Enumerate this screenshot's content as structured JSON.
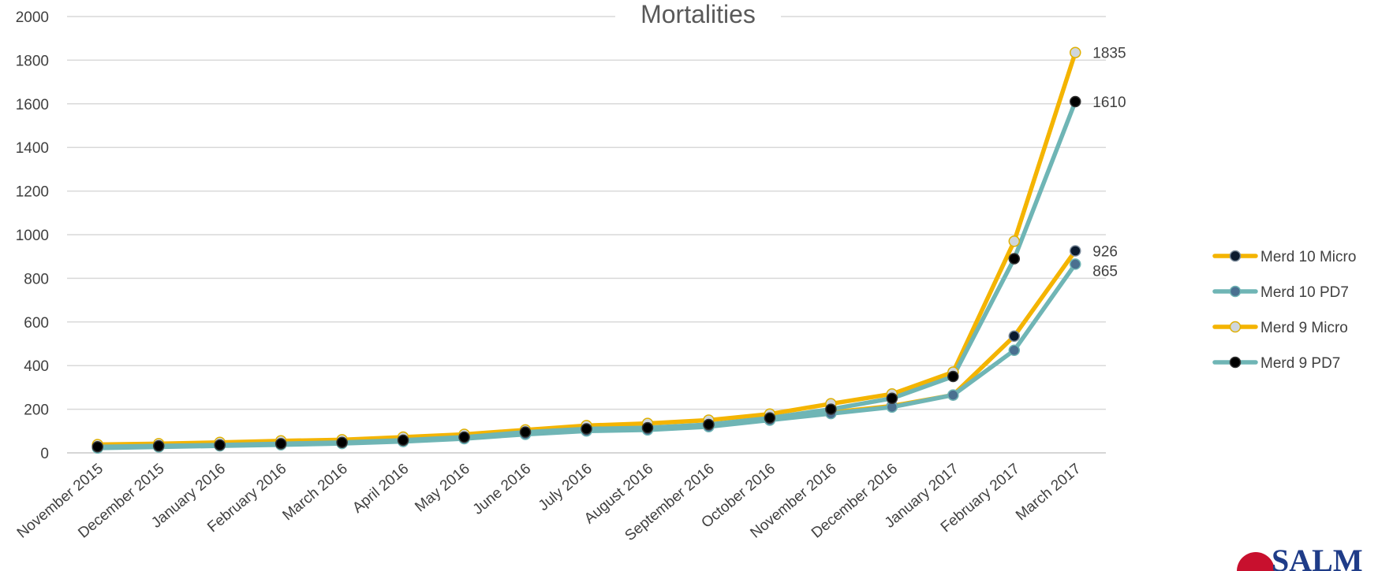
{
  "chart_data": {
    "type": "line",
    "title": "Mortalities",
    "xlabel": "",
    "ylabel": "",
    "ylim": [
      0,
      2000
    ],
    "yticks": [
      0,
      200,
      400,
      600,
      800,
      1000,
      1200,
      1400,
      1600,
      1800,
      2000
    ],
    "grid": true,
    "legend_position": "right",
    "categories": [
      "November 2015",
      "December 2015",
      "January 2016",
      "February 2016",
      "March 2016",
      "April 2016",
      "May 2016",
      "June 2016",
      "July 2016",
      "August 2016",
      "September 2016",
      "October 2016",
      "November 2016",
      "December 2016",
      "January 2017",
      "February 2017",
      "March 2017"
    ],
    "series": [
      {
        "name": "Merd 10 Micro",
        "line_color": "#f4b400",
        "marker_fill": "#0b1a2e",
        "marker_edge": "#7a8a9a",
        "values": [
          25,
          30,
          35,
          40,
          45,
          55,
          70,
          90,
          105,
          110,
          130,
          155,
          185,
          215,
          265,
          535,
          926
        ],
        "end_label": "926"
      },
      {
        "name": "Merd 10 PD7",
        "line_color": "#6fb5b5",
        "marker_fill": "#4a7090",
        "marker_edge": "#6fb5b5",
        "values": [
          22,
          27,
          32,
          37,
          43,
          52,
          65,
          85,
          100,
          105,
          120,
          150,
          180,
          210,
          265,
          470,
          865
        ],
        "end_label": "865"
      },
      {
        "name": "Merd 9 Micro",
        "line_color": "#f4b400",
        "marker_fill": "#cfd6dc",
        "marker_edge": "#e0b000",
        "values": [
          38,
          42,
          48,
          55,
          60,
          72,
          85,
          105,
          125,
          135,
          150,
          178,
          225,
          270,
          370,
          970,
          1835
        ],
        "end_label": "1835"
      },
      {
        "name": "Merd 9 PD7",
        "line_color": "#6fb5b5",
        "marker_fill": "#000000",
        "marker_edge": "#333333",
        "values": [
          28,
          32,
          36,
          42,
          48,
          58,
          72,
          95,
          110,
          115,
          130,
          160,
          200,
          250,
          350,
          890,
          1610
        ],
        "end_label": "1610"
      }
    ]
  }
}
